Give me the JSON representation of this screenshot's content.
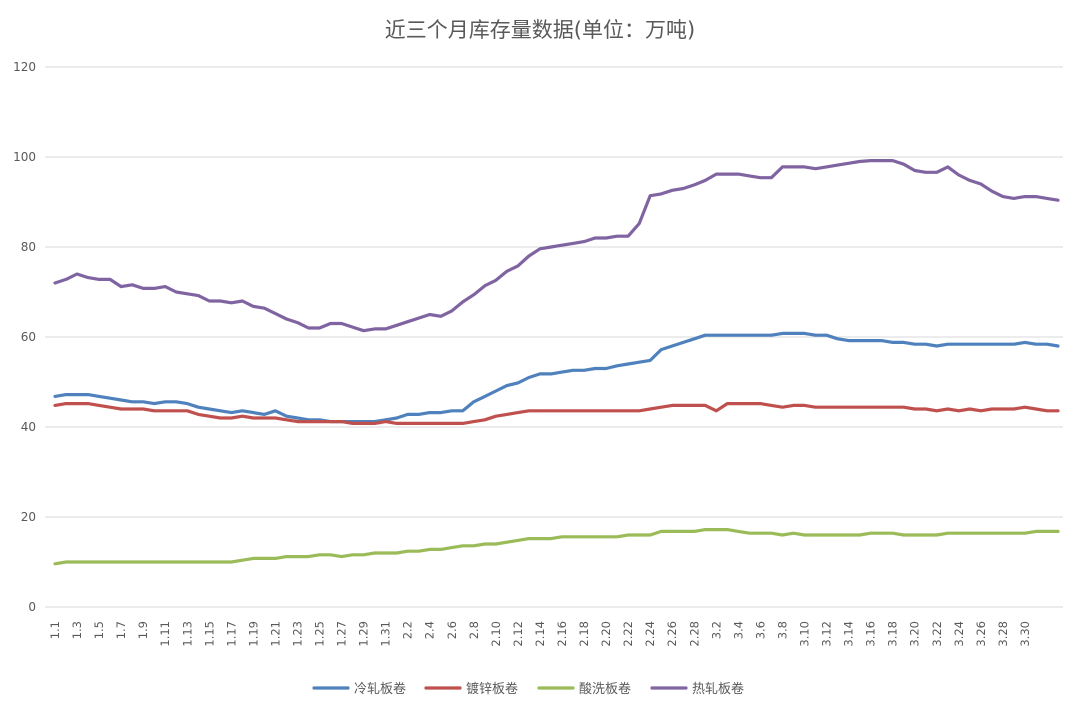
{
  "chart_data": {
    "type": "line",
    "title": "近三个月库存量数据(单位：万吨)",
    "xlabel": "",
    "ylabel": "",
    "ylim": [
      0,
      120
    ],
    "yticks": [
      0,
      20,
      40,
      60,
      80,
      100,
      120
    ],
    "grid": true,
    "legend_position": "bottom",
    "x_tick_labels": [
      "1.1",
      "1.3",
      "1.5",
      "1.7",
      "1.9",
      "1.11",
      "1.13",
      "1.15",
      "1.17",
      "1.19",
      "1.21",
      "1.23",
      "1.25",
      "1.27",
      "1.29",
      "1.31",
      "2.2",
      "2.4",
      "2.6",
      "2.8",
      "2.10",
      "2.12",
      "2.14",
      "2.16",
      "2.18",
      "2.20",
      "2.22",
      "2.24",
      "2.26",
      "2.28",
      "3.2",
      "3.4",
      "3.6",
      "3.8",
      "3.10",
      "3.12",
      "3.14",
      "3.16",
      "3.18",
      "3.20",
      "3.22",
      "3.24",
      "3.26",
      "3.28",
      "3.30"
    ],
    "series": [
      {
        "name": "冷轧板卷",
        "color": "#4f81bd",
        "values": [
          46.8,
          47.2,
          47.2,
          47.2,
          46.8,
          46.4,
          46,
          45.6,
          45.6,
          45.2,
          45.6,
          45.6,
          45.2,
          44.4,
          44,
          43.6,
          43.2,
          43.6,
          43.2,
          42.8,
          43.6,
          42.4,
          42,
          41.6,
          41.6,
          41.2,
          41.2,
          41.2,
          41.2,
          41.2,
          41.6,
          42,
          42.8,
          42.8,
          43.2,
          43.2,
          43.6,
          43.6,
          45.6,
          46.8,
          48,
          49.2,
          49.8,
          51,
          51.8,
          51.8,
          52.2,
          52.6,
          52.6,
          53,
          53,
          53.6,
          54,
          54.4,
          54.8,
          57.2,
          58,
          58.8,
          59.6,
          60.4,
          60.4,
          60.4,
          60.4,
          60.4,
          60.4,
          60.4,
          60.8,
          60.8,
          60.8,
          60.4,
          60.4,
          59.6,
          59.2,
          59.2,
          59.2,
          59.2,
          58.8,
          58.8,
          58.4,
          58.4,
          58,
          58.4,
          58.4,
          58.4,
          58.4,
          58.4,
          58.4,
          58.4,
          58.8,
          58.4,
          58.4,
          58
        ]
      },
      {
        "name": "镀锌板卷",
        "color": "#c0504d",
        "values": [
          44.8,
          45.2,
          45.2,
          45.2,
          44.8,
          44.4,
          44,
          44,
          44,
          43.6,
          43.6,
          43.6,
          43.6,
          42.8,
          42.4,
          42,
          42,
          42.4,
          42,
          42,
          42,
          41.6,
          41.2,
          41.2,
          41.2,
          41.2,
          41.2,
          40.8,
          40.8,
          40.8,
          41.2,
          40.8,
          40.8,
          40.8,
          40.8,
          40.8,
          40.8,
          40.8,
          41.2,
          41.6,
          42.4,
          42.8,
          43.2,
          43.6,
          43.6,
          43.6,
          43.6,
          43.6,
          43.6,
          43.6,
          43.6,
          43.6,
          43.6,
          43.6,
          44,
          44.4,
          44.8,
          44.8,
          44.8,
          44.8,
          43.6,
          45.2,
          45.2,
          45.2,
          45.2,
          44.8,
          44.4,
          44.8,
          44.8,
          44.4,
          44.4,
          44.4,
          44.4,
          44.4,
          44.4,
          44.4,
          44.4,
          44.4,
          44,
          44,
          43.6,
          44,
          43.6,
          44,
          43.6,
          44,
          44,
          44,
          44.4,
          44,
          43.6,
          43.6
        ]
      },
      {
        "name": "酸洗板卷",
        "color": "#9bbb59",
        "values": [
          9.6,
          10,
          10,
          10,
          10,
          10,
          10,
          10,
          10,
          10,
          10,
          10,
          10,
          10,
          10,
          10,
          10,
          10.4,
          10.8,
          10.8,
          10.8,
          11.2,
          11.2,
          11.2,
          11.6,
          11.6,
          11.2,
          11.6,
          11.6,
          12,
          12,
          12,
          12.4,
          12.4,
          12.8,
          12.8,
          13.2,
          13.6,
          13.6,
          14,
          14,
          14.4,
          14.8,
          15.2,
          15.2,
          15.2,
          15.6,
          15.6,
          15.6,
          15.6,
          15.6,
          15.6,
          16,
          16,
          16,
          16.8,
          16.8,
          16.8,
          16.8,
          17.2,
          17.2,
          17.2,
          16.8,
          16.4,
          16.4,
          16.4,
          16,
          16.4,
          16,
          16,
          16,
          16,
          16,
          16,
          16.4,
          16.4,
          16.4,
          16,
          16,
          16,
          16,
          16.4,
          16.4,
          16.4,
          16.4,
          16.4,
          16.4,
          16.4,
          16.4,
          16.8,
          16.8,
          16.8
        ]
      },
      {
        "name": "热轧板卷",
        "color": "#8064a2",
        "values": [
          72,
          72.8,
          74,
          73.2,
          72.8,
          72.8,
          71.2,
          71.6,
          70.8,
          70.8,
          71.2,
          70,
          69.6,
          69.2,
          68,
          68,
          67.6,
          68,
          66.8,
          66.4,
          65.2,
          64,
          63.2,
          62,
          62,
          63,
          63,
          62.2,
          61.4,
          61.8,
          61.8,
          62.6,
          63.4,
          64.2,
          65,
          64.6,
          65.8,
          67.8,
          69.4,
          71.4,
          72.6,
          74.6,
          75.8,
          78,
          79.6,
          80,
          80.4,
          80.8,
          81.2,
          82,
          82,
          82.4,
          82.4,
          85.2,
          91.4,
          91.8,
          92.6,
          93,
          93.8,
          94.8,
          96.2,
          96.2,
          96.2,
          95.8,
          95.4,
          95.4,
          97.8,
          97.8,
          97.8,
          97.4,
          97.8,
          98.2,
          98.6,
          99,
          99.2,
          99.2,
          99.2,
          98.4,
          97,
          96.6,
          96.6,
          97.8,
          96,
          94.8,
          94,
          92.4,
          91.2,
          90.8,
          91.2,
          91.2,
          90.8,
          90.4
        ]
      }
    ]
  }
}
